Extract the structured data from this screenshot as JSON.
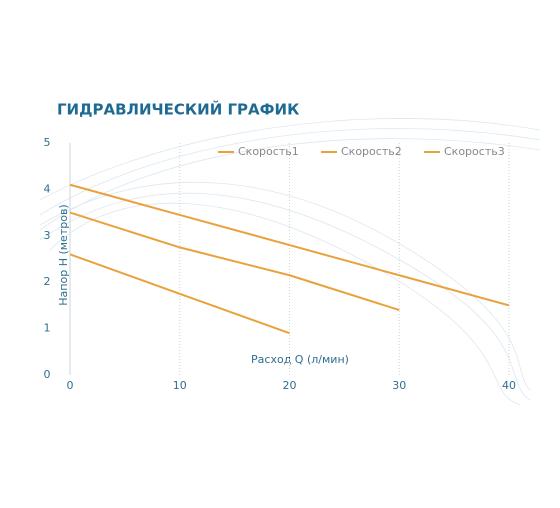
{
  "chart_data": {
    "type": "line",
    "title": "ГИДРАВЛИЧЕСКИЙ ГРАФИК",
    "x_label": "Расход Q (л/мин)",
    "y_label": "Напор H (метров)",
    "x": [
      0,
      10,
      20,
      30,
      40
    ],
    "series": [
      {
        "name": "Скорость1",
        "color": "#e9a23b",
        "values": [
          4.1,
          3.45,
          2.8,
          2.15,
          1.5
        ]
      },
      {
        "name": "Скорость2",
        "color": "#e9a23b",
        "values": [
          3.5,
          2.75,
          2.15,
          1.4,
          null
        ]
      },
      {
        "name": "Скорость3",
        "color": "#e9a23b",
        "values": [
          2.6,
          1.75,
          0.9,
          null,
          null
        ]
      }
    ],
    "xlim": [
      0,
      40
    ],
    "xticks": [
      0,
      10,
      20,
      30,
      40
    ],
    "ylim": [
      0,
      5
    ],
    "yticks": [
      0,
      1,
      2,
      3,
      4,
      5
    ],
    "grid": true
  }
}
